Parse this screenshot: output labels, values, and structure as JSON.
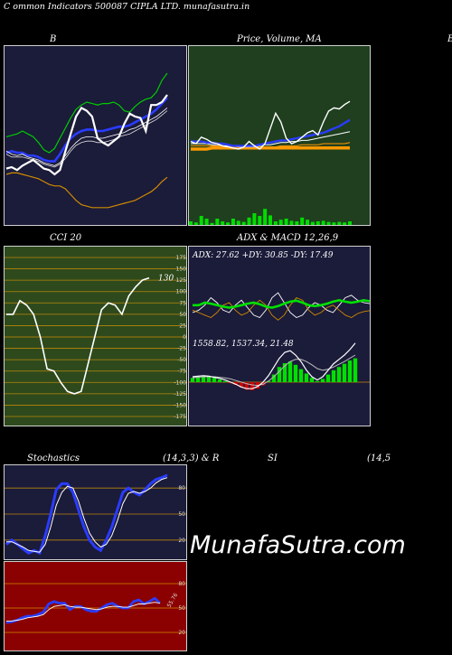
{
  "header": {
    "title": "C  ommon  Indicators 500087 CIPLA LTD. munafasutra.in"
  },
  "watermark": "MunafaSutra.com",
  "colors": {
    "navy": "#1b1b3a",
    "forest": "#1f3f1f",
    "olive": "#2e4a1c",
    "maroon": "#8b0000",
    "bull": "#00e000",
    "bear": "#d00000"
  },
  "panels": {
    "bb": {
      "title": "B",
      "right_edge": "B"
    },
    "price": {
      "title": "Price,  Volume,  MA"
    },
    "cci": {
      "title": "CCI 20"
    },
    "adx": {
      "title": "ADX  & MACD 12,26,9",
      "readout": "ADX: 27.62  +DY: 30.85 -DY: 17.49"
    },
    "macd": {
      "readout": "1558.82,   1537.34,   21.48"
    },
    "stoch": {
      "title": "Stochastics",
      "params": "(14,3,3) & R"
    },
    "rsi": {
      "title": "SI",
      "params": "(14,5"
    }
  },
  "chart_data": [
    {
      "type": "line",
      "panel": "bollinger",
      "series": [
        {
          "values": [
            0.34,
            0.35,
            0.33,
            0.36,
            0.38,
            0.4,
            0.37,
            0.34,
            0.33,
            0.3,
            0.33,
            0.46,
            0.58,
            0.7,
            0.76,
            0.74,
            0.7,
            0.55,
            0.52,
            0.5,
            0.53,
            0.56,
            0.65,
            0.72,
            0.7,
            0.69,
            0.6,
            0.78,
            0.78,
            0.8,
            0.85
          ]
        },
        {
          "values": [
            0.56,
            0.57,
            0.58,
            0.6,
            0.58,
            0.56,
            0.52,
            0.47,
            0.45,
            0.48,
            0.55,
            0.62,
            0.69,
            0.75,
            0.78,
            0.8,
            0.79,
            0.78,
            0.79,
            0.79,
            0.8,
            0.78,
            0.74,
            0.73,
            0.77,
            0.8,
            0.82,
            0.83,
            0.87,
            0.95,
            1.0
          ]
        },
        {
          "values": [
            0.45,
            0.46,
            0.45,
            0.45,
            0.43,
            0.43,
            0.42,
            0.4,
            0.39,
            0.39,
            0.44,
            0.5,
            0.55,
            0.58,
            0.6,
            0.61,
            0.61,
            0.6,
            0.6,
            0.61,
            0.62,
            0.63,
            0.63,
            0.64,
            0.66,
            0.68,
            0.7,
            0.72,
            0.75,
            0.79,
            0.83
          ]
        },
        {
          "values": [
            0.3,
            0.31,
            0.31,
            0.3,
            0.29,
            0.28,
            0.27,
            0.25,
            0.23,
            0.22,
            0.22,
            0.2,
            0.16,
            0.12,
            0.09,
            0.08,
            0.07,
            0.07,
            0.07,
            0.07,
            0.08,
            0.09,
            0.1,
            0.11,
            0.12,
            0.14,
            0.16,
            0.18,
            0.21,
            0.25,
            0.28
          ]
        },
        {
          "values": [
            0.46,
            0.44,
            0.43,
            0.44,
            0.42,
            0.41,
            0.4,
            0.38,
            0.37,
            0.36,
            0.38,
            0.43,
            0.48,
            0.52,
            0.55,
            0.56,
            0.56,
            0.55,
            0.55,
            0.56,
            0.57,
            0.58,
            0.59,
            0.61,
            0.62,
            0.64,
            0.66,
            0.68,
            0.7,
            0.73,
            0.76
          ]
        },
        {
          "values": [
            0.44,
            0.42,
            0.42,
            0.42,
            0.41,
            0.4,
            0.39,
            0.37,
            0.36,
            0.35,
            0.37,
            0.41,
            0.46,
            0.5,
            0.52,
            0.53,
            0.53,
            0.52,
            0.52,
            0.53,
            0.54,
            0.56,
            0.57,
            0.58,
            0.6,
            0.62,
            0.64,
            0.66,
            0.68,
            0.71,
            0.74
          ]
        }
      ]
    },
    {
      "type": "line",
      "panel": "price_volume_ma",
      "series": [
        {
          "values": [
            0.62,
            0.6,
            0.66,
            0.64,
            0.61,
            0.6,
            0.58,
            0.57,
            0.56,
            0.55,
            0.57,
            0.62,
            0.58,
            0.55,
            0.6,
            0.74,
            0.88,
            0.8,
            0.65,
            0.6,
            0.62,
            0.66,
            0.7,
            0.72,
            0.68,
            0.8,
            0.9,
            0.93,
            0.92,
            0.96,
            0.99
          ]
        },
        {
          "values": [
            0.62,
            0.62,
            0.62,
            0.61,
            0.61,
            0.6,
            0.6,
            0.59,
            0.58,
            0.58,
            0.58,
            0.58,
            0.58,
            0.59,
            0.6,
            0.61,
            0.62,
            0.63,
            0.63,
            0.64,
            0.65,
            0.66,
            0.67,
            0.68,
            0.69,
            0.7,
            0.72,
            0.74,
            0.76,
            0.79,
            0.82
          ]
        },
        {
          "values": [
            0.6,
            0.6,
            0.6,
            0.6,
            0.59,
            0.59,
            0.58,
            0.58,
            0.58,
            0.57,
            0.57,
            0.57,
            0.57,
            0.58,
            0.59,
            0.59,
            0.6,
            0.61,
            0.61,
            0.62,
            0.62,
            0.63,
            0.63,
            0.64,
            0.65,
            0.66,
            0.67,
            0.68,
            0.69,
            0.7,
            0.71
          ]
        },
        {
          "values": [
            0.58,
            0.58,
            0.58,
            0.58,
            0.58,
            0.58,
            0.57,
            0.57,
            0.57,
            0.57,
            0.56,
            0.56,
            0.56,
            0.56,
            0.57,
            0.57,
            0.57,
            0.58,
            0.58,
            0.58,
            0.58,
            0.59,
            0.59,
            0.59,
            0.59,
            0.6,
            0.6,
            0.6,
            0.6,
            0.6,
            0.61
          ]
        },
        {
          "values": [
            0.55,
            0.55,
            0.55,
            0.55,
            0.56,
            0.56,
            0.56,
            0.56,
            0.56,
            0.56,
            0.56,
            0.56,
            0.56,
            0.56,
            0.56,
            0.56,
            0.56,
            0.56,
            0.56,
            0.56,
            0.56,
            0.56,
            0.56,
            0.56,
            0.56,
            0.56,
            0.56,
            0.56,
            0.56,
            0.56,
            0.56
          ]
        }
      ],
      "volume": [
        0.05,
        0.03,
        0.15,
        0.1,
        0.02,
        0.1,
        0.05,
        0.03,
        0.1,
        0.06,
        0.04,
        0.12,
        0.2,
        0.15,
        0.28,
        0.16,
        0.05,
        0.08,
        0.1,
        0.06,
        0.05,
        0.12,
        0.08,
        0.04,
        0.05,
        0.06,
        0.04,
        0.03,
        0.04,
        0.03,
        0.05
      ]
    },
    {
      "type": "line",
      "panel": "cci",
      "yticks": [
        175,
        150,
        125,
        100,
        75,
        50,
        25,
        0,
        -25,
        -50,
        -75,
        -100,
        -125,
        -150,
        -175
      ],
      "ylim": [
        -185,
        185
      ],
      "last_value_label": "130",
      "series": [
        {
          "values": [
            50,
            50,
            80,
            70,
            50,
            0,
            -70,
            -75,
            -100,
            -120,
            -125,
            -120,
            -60,
            0,
            60,
            75,
            70,
            50,
            90,
            110,
            125,
            130
          ]
        }
      ]
    },
    {
      "type": "line",
      "panel": "adx",
      "series": [
        {
          "values": [
            0.55,
            0.55,
            0.6,
            0.58,
            0.55,
            0.52,
            0.5,
            0.52,
            0.55,
            0.58,
            0.6,
            0.57,
            0.52,
            0.5,
            0.53,
            0.58,
            0.62,
            0.64,
            0.6,
            0.55,
            0.53,
            0.55,
            0.58,
            0.62,
            0.65,
            0.62,
            0.6,
            0.62,
            0.65,
            0.63
          ]
        },
        {
          "values": [
            0.4,
            0.45,
            0.55,
            0.7,
            0.6,
            0.45,
            0.4,
            0.55,
            0.65,
            0.5,
            0.35,
            0.3,
            0.45,
            0.7,
            0.8,
            0.6,
            0.4,
            0.3,
            0.35,
            0.5,
            0.6,
            0.55,
            0.45,
            0.4,
            0.55,
            0.7,
            0.75,
            0.65,
            0.6,
            0.58
          ]
        },
        {
          "values": [
            0.45,
            0.4,
            0.35,
            0.3,
            0.4,
            0.55,
            0.6,
            0.45,
            0.35,
            0.4,
            0.55,
            0.65,
            0.55,
            0.35,
            0.25,
            0.35,
            0.55,
            0.7,
            0.65,
            0.45,
            0.35,
            0.4,
            0.5,
            0.55,
            0.45,
            0.35,
            0.3,
            0.38,
            0.42,
            0.44
          ]
        }
      ]
    },
    {
      "type": "bar",
      "panel": "macd",
      "histogram": [
        0.08,
        0.1,
        0.12,
        0.1,
        0.08,
        0.05,
        0.02,
        -0.02,
        -0.05,
        -0.1,
        -0.14,
        -0.15,
        -0.12,
        -0.06,
        0.02,
        0.14,
        0.28,
        0.35,
        0.38,
        0.32,
        0.24,
        0.16,
        0.08,
        0.02,
        0.06,
        0.14,
        0.22,
        0.28,
        0.34,
        0.4,
        0.44
      ],
      "series": [
        {
          "values": [
            0.1,
            0.11,
            0.12,
            0.11,
            0.09,
            0.07,
            0.04,
            0.0,
            -0.04,
            -0.09,
            -0.12,
            -0.12,
            -0.08,
            0.0,
            0.12,
            0.28,
            0.44,
            0.55,
            0.58,
            0.5,
            0.38,
            0.22,
            0.1,
            0.04,
            0.1,
            0.22,
            0.34,
            0.42,
            0.5,
            0.6,
            0.72
          ]
        },
        {
          "values": [
            0.08,
            0.09,
            0.1,
            0.1,
            0.1,
            0.09,
            0.08,
            0.06,
            0.03,
            0.0,
            -0.03,
            -0.05,
            -0.06,
            -0.04,
            0.02,
            0.1,
            0.2,
            0.3,
            0.38,
            0.42,
            0.42,
            0.38,
            0.32,
            0.25,
            0.22,
            0.24,
            0.28,
            0.33,
            0.38,
            0.44,
            0.5
          ]
        }
      ]
    },
    {
      "type": "line",
      "panel": "stochastics",
      "yticks": [
        80,
        50,
        20
      ],
      "ylim": [
        0,
        100
      ],
      "series": [
        {
          "values": [
            15,
            20,
            15,
            10,
            5,
            8,
            5,
            25,
            50,
            78,
            85,
            85,
            75,
            55,
            35,
            20,
            12,
            8,
            20,
            35,
            55,
            75,
            80,
            75,
            72,
            78,
            85,
            90,
            92,
            95
          ]
        },
        {
          "values": [
            18,
            18,
            15,
            12,
            8,
            7,
            6,
            15,
            35,
            60,
            75,
            82,
            80,
            65,
            45,
            28,
            18,
            12,
            15,
            25,
            42,
            62,
            74,
            76,
            74,
            76,
            80,
            86,
            90,
            92
          ]
        }
      ]
    },
    {
      "type": "line",
      "panel": "rsi",
      "yticks": [
        80,
        50,
        20
      ],
      "ylim": [
        0,
        100
      ],
      "last_value_label": "55.76",
      "series": [
        {
          "values": [
            32,
            33,
            35,
            38,
            40,
            40,
            42,
            45,
            55,
            58,
            56,
            56,
            48,
            52,
            52,
            48,
            46,
            46,
            50,
            54,
            56,
            52,
            50,
            50,
            58,
            60,
            55,
            58,
            62,
            56
          ]
        },
        {
          "values": [
            34,
            34,
            35,
            36,
            38,
            39,
            40,
            42,
            48,
            52,
            53,
            54,
            52,
            51,
            51,
            50,
            49,
            48,
            49,
            51,
            52,
            52,
            51,
            51,
            53,
            55,
            55,
            56,
            57,
            56
          ]
        }
      ]
    }
  ]
}
